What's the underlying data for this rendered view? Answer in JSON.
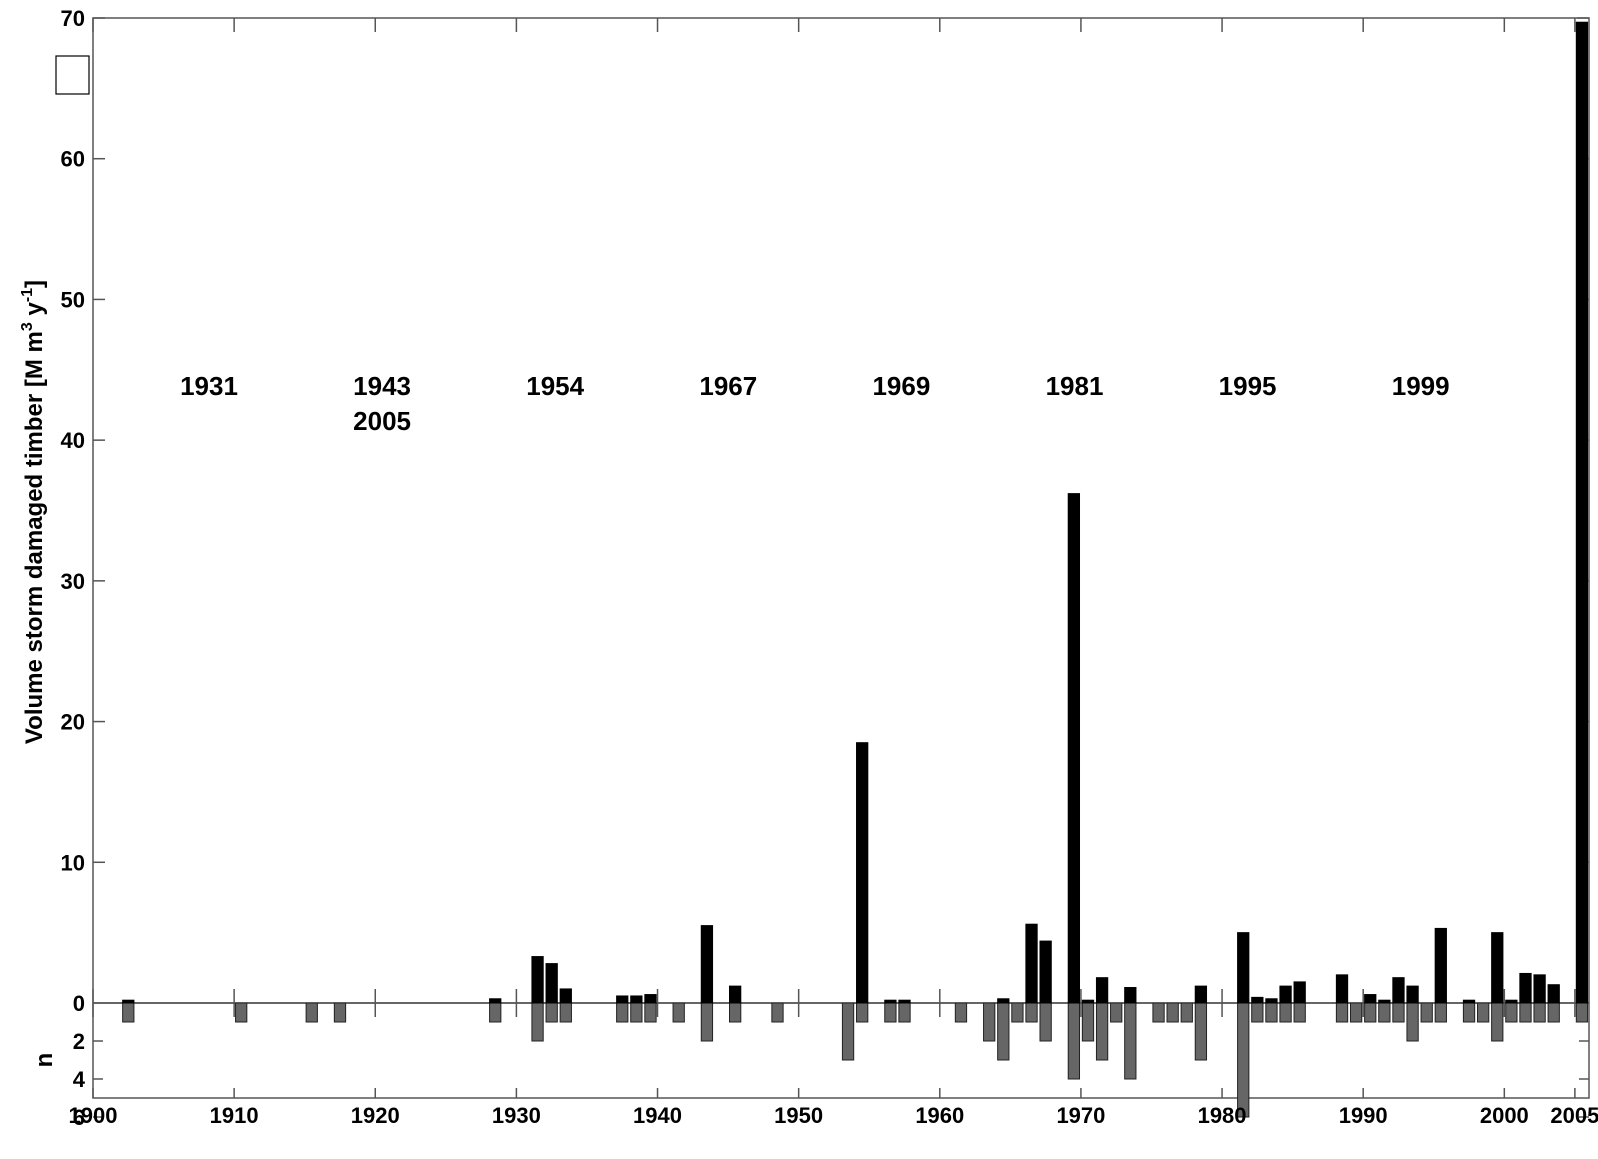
{
  "chart_data": {
    "type": "bar",
    "ylabel": {
      "main": "Volume storm damaged timber [M m",
      "sup1": "3",
      "mid": " y",
      "sup2": "-1",
      "end": "]"
    },
    "ylabel_lower": "n",
    "xlim": [
      1900,
      2006
    ],
    "ylim": [
      0,
      70
    ],
    "ylim_lower": [
      0,
      6
    ],
    "xticks": [
      1900,
      1910,
      1920,
      1930,
      1940,
      1950,
      1960,
      1970,
      1980,
      1990,
      2000,
      2005
    ],
    "yticks": [
      0,
      10,
      20,
      30,
      40,
      50,
      60,
      70
    ],
    "yticks_lower": [
      2,
      4,
      6
    ],
    "legend_events": [
      {
        "line1": "1931",
        "line2": ""
      },
      {
        "line1": "1943",
        "line2": "2005"
      },
      {
        "line1": "1954",
        "line2": ""
      },
      {
        "line1": "1967",
        "line2": ""
      },
      {
        "line1": "1969",
        "line2": ""
      },
      {
        "line1": "1981",
        "line2": ""
      },
      {
        "line1": "1995",
        "line2": ""
      },
      {
        "line1": "1999",
        "line2": ""
      }
    ],
    "series": [
      {
        "name": "Volume",
        "color": "#000000",
        "points": [
          {
            "x": 1902,
            "y": 0.2
          },
          {
            "x": 1928,
            "y": 0.3
          },
          {
            "x": 1931,
            "y": 3.3
          },
          {
            "x": 1932,
            "y": 2.8
          },
          {
            "x": 1933,
            "y": 1.0
          },
          {
            "x": 1937,
            "y": 0.5
          },
          {
            "x": 1938,
            "y": 0.5
          },
          {
            "x": 1939,
            "y": 0.6
          },
          {
            "x": 1943,
            "y": 5.5
          },
          {
            "x": 1945,
            "y": 1.2
          },
          {
            "x": 1954,
            "y": 18.5
          },
          {
            "x": 1956,
            "y": 0.2
          },
          {
            "x": 1957,
            "y": 0.2
          },
          {
            "x": 1964,
            "y": 0.3
          },
          {
            "x": 1966,
            "y": 5.6
          },
          {
            "x": 1967,
            "y": 4.4
          },
          {
            "x": 1969,
            "y": 36.2
          },
          {
            "x": 1970,
            "y": 0.2
          },
          {
            "x": 1971,
            "y": 1.8
          },
          {
            "x": 1973,
            "y": 1.1
          },
          {
            "x": 1978,
            "y": 1.2
          },
          {
            "x": 1981,
            "y": 5.0
          },
          {
            "x": 1982,
            "y": 0.4
          },
          {
            "x": 1983,
            "y": 0.3
          },
          {
            "x": 1984,
            "y": 1.2
          },
          {
            "x": 1985,
            "y": 1.5
          },
          {
            "x": 1988,
            "y": 2.0
          },
          {
            "x": 1990,
            "y": 0.6
          },
          {
            "x": 1991,
            "y": 0.2
          },
          {
            "x": 1992,
            "y": 1.8
          },
          {
            "x": 1993,
            "y": 1.2
          },
          {
            "x": 1995,
            "y": 5.3
          },
          {
            "x": 1997,
            "y": 0.2
          },
          {
            "x": 1999,
            "y": 5.0
          },
          {
            "x": 2000,
            "y": 0.2
          },
          {
            "x": 2001,
            "y": 2.1
          },
          {
            "x": 2002,
            "y": 2.0
          },
          {
            "x": 2003,
            "y": 1.3
          },
          {
            "x": 2005,
            "y": 69.7
          }
        ]
      },
      {
        "name": "n",
        "color": "#666666",
        "points": [
          {
            "x": 1902,
            "y": 1
          },
          {
            "x": 1910,
            "y": 1
          },
          {
            "x": 1915,
            "y": 1
          },
          {
            "x": 1917,
            "y": 1
          },
          {
            "x": 1928,
            "y": 1
          },
          {
            "x": 1931,
            "y": 2
          },
          {
            "x": 1932,
            "y": 1
          },
          {
            "x": 1933,
            "y": 1
          },
          {
            "x": 1937,
            "y": 1
          },
          {
            "x": 1938,
            "y": 1
          },
          {
            "x": 1939,
            "y": 1
          },
          {
            "x": 1941,
            "y": 1
          },
          {
            "x": 1943,
            "y": 2
          },
          {
            "x": 1945,
            "y": 1
          },
          {
            "x": 1948,
            "y": 1
          },
          {
            "x": 1953,
            "y": 3
          },
          {
            "x": 1954,
            "y": 1
          },
          {
            "x": 1956,
            "y": 1
          },
          {
            "x": 1957,
            "y": 1
          },
          {
            "x": 1961,
            "y": 1
          },
          {
            "x": 1963,
            "y": 2
          },
          {
            "x": 1964,
            "y": 3
          },
          {
            "x": 1965,
            "y": 1
          },
          {
            "x": 1966,
            "y": 1
          },
          {
            "x": 1967,
            "y": 2
          },
          {
            "x": 1969,
            "y": 4
          },
          {
            "x": 1970,
            "y": 2
          },
          {
            "x": 1971,
            "y": 3
          },
          {
            "x": 1972,
            "y": 1
          },
          {
            "x": 1973,
            "y": 4
          },
          {
            "x": 1975,
            "y": 1
          },
          {
            "x": 1976,
            "y": 1
          },
          {
            "x": 1977,
            "y": 1
          },
          {
            "x": 1978,
            "y": 3
          },
          {
            "x": 1981,
            "y": 6
          },
          {
            "x": 1982,
            "y": 1
          },
          {
            "x": 1983,
            "y": 1
          },
          {
            "x": 1984,
            "y": 1
          },
          {
            "x": 1985,
            "y": 1
          },
          {
            "x": 1988,
            "y": 1
          },
          {
            "x": 1989,
            "y": 1
          },
          {
            "x": 1990,
            "y": 1
          },
          {
            "x": 1991,
            "y": 1
          },
          {
            "x": 1992,
            "y": 1
          },
          {
            "x": 1993,
            "y": 2
          },
          {
            "x": 1994,
            "y": 1
          },
          {
            "x": 1995,
            "y": 1
          },
          {
            "x": 1997,
            "y": 1
          },
          {
            "x": 1998,
            "y": 1
          },
          {
            "x": 1999,
            "y": 2
          },
          {
            "x": 2000,
            "y": 1
          },
          {
            "x": 2001,
            "y": 1
          },
          {
            "x": 2002,
            "y": 1
          },
          {
            "x": 2003,
            "y": 1
          },
          {
            "x": 2005,
            "y": 1
          }
        ]
      }
    ]
  }
}
